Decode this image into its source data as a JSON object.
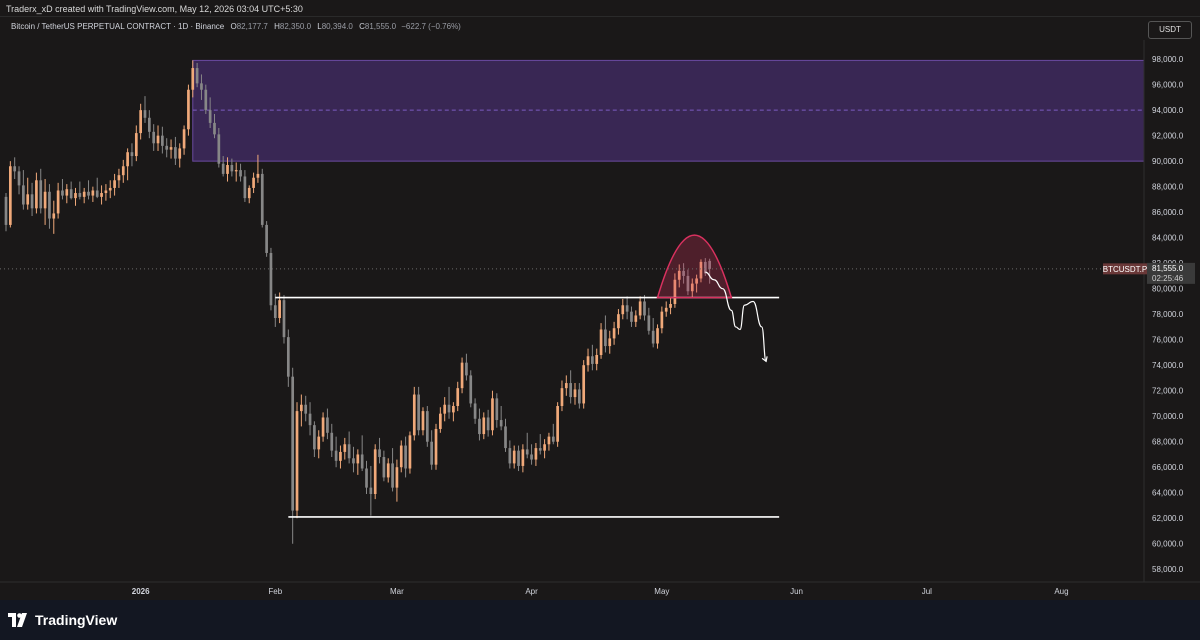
{
  "header": {
    "created_by": "Traderx_xD created with TradingView.com, May 12, 2026 03:04 UTC+5:30"
  },
  "symbol": {
    "title": "Bitcoin / TetherUS PERPETUAL CONTRACT · 1D · Binance",
    "open_label": "O",
    "open": "82,177.7",
    "high_label": "H",
    "high": "82,350.0",
    "low_label": "L",
    "low": "80,394.0",
    "close_label": "C",
    "close": "81,555.0",
    "change": "−622.7 (−0.76%)"
  },
  "currency_button": "USDT",
  "price_tag": {
    "ticker": "BTCUSDT.P",
    "price": "81,555.0",
    "countdown": "02:25:46"
  },
  "footer": {
    "brand": "TradingView"
  },
  "colors": {
    "background": "#1a1818",
    "bull_candle": "#f0a97a",
    "bear_candle": "#878787",
    "zone_fill": "#3f2a5f",
    "zone_border": "#6a4aa0",
    "arc_color": "#d9315f"
  },
  "chart_data": {
    "type": "candlestick",
    "y_axis_ticks": [
      "98,000.0",
      "96,000.0",
      "94,000.0",
      "92,000.0",
      "90,000.0",
      "88,000.0",
      "86,000.0",
      "84,000.0",
      "82,000.0",
      "80,000.0",
      "78,000.0",
      "76,000.0",
      "74,000.0",
      "72,000.0",
      "70,000.0",
      "68,000.0",
      "66,000.0",
      "64,000.0",
      "62,000.0",
      "60,000.0",
      "58,000.0"
    ],
    "ylim": [
      57000,
      99500
    ],
    "x_axis_labels": [
      "2026",
      "Feb",
      "Mar",
      "Apr",
      "May",
      "Jun",
      "Jul",
      "Aug"
    ],
    "x_range": [
      "2025-12-01",
      "2026-08-20"
    ],
    "zones": [
      {
        "type": "supply-zone",
        "from": "2026-01-13",
        "to": "2026-08-20",
        "low": 90000,
        "high": 97900,
        "mid": 94000
      }
    ],
    "levels": [
      {
        "price": 79300,
        "from": "2026-02-01",
        "to": "2026-05-28"
      },
      {
        "price": 62100,
        "from": "2026-02-04",
        "to": "2026-05-28"
      }
    ],
    "arc": {
      "from": "2026-04-30",
      "to": "2026-05-17",
      "base": 79300,
      "peak": 84200
    },
    "projection": [
      [
        "2026-05-11",
        81300
      ],
      [
        "2026-05-13",
        80700
      ],
      [
        "2026-05-15",
        80000
      ],
      [
        "2026-05-17",
        78300
      ],
      [
        "2026-05-18",
        77000
      ],
      [
        "2026-05-19",
        76800
      ],
      [
        "2026-05-20",
        78700
      ],
      [
        "2026-05-22",
        79000
      ],
      [
        "2026-05-24",
        77000
      ],
      [
        "2026-05-25",
        74300
      ]
    ],
    "last_price": 81555,
    "candles": [
      [
        "2025-12-01",
        87200,
        87500,
        84500,
        85000
      ],
      [
        "2025-12-02",
        85000,
        90000,
        84800,
        89600
      ],
      [
        "2025-12-03",
        89600,
        90300,
        88600,
        89200
      ],
      [
        "2025-12-04",
        89200,
        89600,
        87400,
        88100
      ],
      [
        "2025-12-05",
        88100,
        89300,
        86200,
        86600
      ],
      [
        "2025-12-06",
        86600,
        88700,
        86200,
        87400
      ],
      [
        "2025-12-07",
        87400,
        88300,
        85700,
        86300
      ],
      [
        "2025-12-08",
        86300,
        89100,
        85900,
        88500
      ],
      [
        "2025-12-09",
        88500,
        89400,
        85900,
        86300
      ],
      [
        "2025-12-10",
        86300,
        88600,
        85000,
        87600
      ],
      [
        "2025-12-11",
        87600,
        88200,
        84700,
        85500
      ],
      [
        "2025-12-12",
        85500,
        86900,
        84300,
        85900
      ],
      [
        "2025-12-13",
        85900,
        88300,
        85500,
        87700
      ],
      [
        "2025-12-14",
        87700,
        88600,
        87000,
        87300
      ],
      [
        "2025-12-15",
        87300,
        88200,
        86700,
        87800
      ],
      [
        "2025-12-16",
        87800,
        88400,
        87000,
        87100
      ],
      [
        "2025-12-17",
        87100,
        87900,
        86500,
        87500
      ],
      [
        "2025-12-18",
        87500,
        88400,
        87000,
        87200
      ],
      [
        "2025-12-19",
        87200,
        87900,
        86700,
        87600
      ],
      [
        "2025-12-20",
        87600,
        88500,
        87000,
        87300
      ],
      [
        "2025-12-21",
        87300,
        88000,
        86800,
        87700
      ],
      [
        "2025-12-22",
        87700,
        88700,
        87100,
        87200
      ],
      [
        "2025-12-23",
        87200,
        88100,
        86600,
        87500
      ],
      [
        "2025-12-24",
        87500,
        88200,
        86900,
        87700
      ],
      [
        "2025-12-25",
        87700,
        88500,
        87100,
        87900
      ],
      [
        "2025-12-26",
        87900,
        89000,
        87300,
        88500
      ],
      [
        "2025-12-27",
        88500,
        89400,
        87900,
        88900
      ],
      [
        "2025-12-28",
        88900,
        90100,
        88300,
        89600
      ],
      [
        "2025-12-29",
        89600,
        91000,
        88500,
        90700
      ],
      [
        "2025-12-30",
        90700,
        91400,
        89600,
        90400
      ],
      [
        "2025-12-31",
        90400,
        92800,
        90000,
        92200
      ],
      [
        "2026-01-01",
        92200,
        94500,
        91700,
        94000
      ],
      [
        "2026-01-02",
        94000,
        95100,
        93000,
        93400
      ],
      [
        "2026-01-03",
        93400,
        94000,
        91800,
        92300
      ],
      [
        "2026-01-04",
        92300,
        92900,
        90800,
        91400
      ],
      [
        "2026-01-05",
        91400,
        92800,
        90800,
        92000
      ],
      [
        "2026-01-06",
        92000,
        92700,
        90600,
        91200
      ],
      [
        "2026-01-07",
        91200,
        91800,
        90300,
        90900
      ],
      [
        "2026-01-08",
        90900,
        91700,
        90200,
        91100
      ],
      [
        "2026-01-09",
        91100,
        91900,
        89700,
        90200
      ],
      [
        "2026-01-10",
        90200,
        91400,
        89500,
        91000
      ],
      [
        "2026-01-11",
        91000,
        92800,
        90500,
        92500
      ],
      [
        "2026-01-12",
        92500,
        96000,
        92000,
        95600
      ],
      [
        "2026-01-13",
        95600,
        97900,
        95000,
        97300
      ],
      [
        "2026-01-14",
        97300,
        97700,
        95800,
        96100
      ],
      [
        "2026-01-15",
        96100,
        96800,
        94800,
        95600
      ],
      [
        "2026-01-16",
        95600,
        96000,
        93700,
        94000
      ],
      [
        "2026-01-17",
        94000,
        95000,
        92600,
        93000
      ],
      [
        "2026-01-18",
        93000,
        93700,
        91800,
        92100
      ],
      [
        "2026-01-19",
        92100,
        92600,
        89500,
        89800
      ],
      [
        "2026-01-20",
        89800,
        90400,
        88800,
        89000
      ],
      [
        "2026-01-21",
        89000,
        90300,
        88400,
        89700
      ],
      [
        "2026-01-22",
        89700,
        90200,
        88800,
        89200
      ],
      [
        "2026-01-23",
        89200,
        89900,
        88400,
        89300
      ],
      [
        "2026-01-24",
        89300,
        89800,
        88400,
        88800
      ],
      [
        "2026-01-25",
        88800,
        89300,
        86800,
        87100
      ],
      [
        "2026-01-26",
        87100,
        88100,
        86700,
        87900
      ],
      [
        "2026-01-27",
        87900,
        89100,
        87500,
        88700
      ],
      [
        "2026-01-28",
        88700,
        90500,
        88300,
        89000
      ],
      [
        "2026-01-29",
        89000,
        89400,
        84800,
        85000
      ],
      [
        "2026-01-30",
        85000,
        85300,
        82500,
        82800
      ],
      [
        "2026-01-31",
        82800,
        83200,
        78300,
        78700
      ],
      [
        "2026-02-01",
        78700,
        79600,
        77000,
        77700
      ],
      [
        "2026-02-02",
        77700,
        79700,
        77300,
        79100
      ],
      [
        "2026-02-03",
        79100,
        79500,
        75700,
        76200
      ],
      [
        "2026-02-04",
        76200,
        76800,
        72300,
        73100
      ],
      [
        "2026-02-05",
        73100,
        73800,
        60000,
        62600
      ],
      [
        "2026-02-06",
        62600,
        71100,
        62000,
        70400
      ],
      [
        "2026-02-07",
        70400,
        71700,
        69200,
        70900
      ],
      [
        "2026-02-08",
        70900,
        71600,
        69600,
        70200
      ],
      [
        "2026-02-09",
        70200,
        71100,
        68500,
        69300
      ],
      [
        "2026-02-10",
        69300,
        69600,
        66800,
        67400
      ],
      [
        "2026-02-11",
        67400,
        68900,
        66700,
        68400
      ],
      [
        "2026-02-12",
        68400,
        70300,
        68000,
        69900
      ],
      [
        "2026-02-13",
        69900,
        70600,
        68200,
        68700
      ],
      [
        "2026-02-14",
        68700,
        69400,
        66800,
        67300
      ],
      [
        "2026-02-15",
        67300,
        68400,
        66000,
        66500
      ],
      [
        "2026-02-16",
        66500,
        67700,
        65900,
        67200
      ],
      [
        "2026-02-17",
        67200,
        68300,
        66600,
        67800
      ],
      [
        "2026-02-18",
        67800,
        68800,
        66300,
        66700
      ],
      [
        "2026-02-19",
        66700,
        67600,
        65600,
        66300
      ],
      [
        "2026-02-20",
        66300,
        67400,
        65400,
        67000
      ],
      [
        "2026-02-21",
        67000,
        68500,
        65700,
        65900
      ],
      [
        "2026-02-22",
        65900,
        66500,
        63900,
        64400
      ],
      [
        "2026-02-23",
        64400,
        66100,
        62200,
        63900
      ],
      [
        "2026-02-24",
        63900,
        67800,
        63500,
        67400
      ],
      [
        "2026-02-25",
        67400,
        68300,
        66300,
        66800
      ],
      [
        "2026-02-26",
        66800,
        67300,
        64900,
        65200
      ],
      [
        "2026-02-27",
        65200,
        66700,
        64800,
        66300
      ],
      [
        "2026-02-28",
        66300,
        67500,
        64100,
        64400
      ],
      [
        "2026-03-01",
        64400,
        66600,
        63300,
        66000
      ],
      [
        "2026-03-02",
        66000,
        68100,
        65600,
        67700
      ],
      [
        "2026-03-03",
        67700,
        68400,
        65200,
        65900
      ],
      [
        "2026-03-04",
        65900,
        68800,
        65500,
        68500
      ],
      [
        "2026-03-05",
        68500,
        72300,
        68100,
        71700
      ],
      [
        "2026-03-06",
        71700,
        72300,
        68500,
        68900
      ],
      [
        "2026-03-07",
        68900,
        70700,
        68500,
        70400
      ],
      [
        "2026-03-08",
        70400,
        70800,
        67600,
        68000
      ],
      [
        "2026-03-09",
        68000,
        68900,
        65800,
        66200
      ],
      [
        "2026-03-10",
        66200,
        69400,
        65800,
        69000
      ],
      [
        "2026-03-11",
        69000,
        70700,
        68700,
        70200
      ],
      [
        "2026-03-12",
        70200,
        71500,
        69600,
        70900
      ],
      [
        "2026-03-13",
        70900,
        72300,
        69800,
        70300
      ],
      [
        "2026-03-14",
        70300,
        71100,
        69600,
        70800
      ],
      [
        "2026-03-15",
        70800,
        72700,
        70400,
        72200
      ],
      [
        "2026-03-16",
        72200,
        74600,
        71800,
        74200
      ],
      [
        "2026-03-17",
        74200,
        74900,
        72800,
        73200
      ],
      [
        "2026-03-18",
        73200,
        73600,
        70700,
        71000
      ],
      [
        "2026-03-19",
        71000,
        71400,
        69400,
        69800
      ],
      [
        "2026-03-20",
        69800,
        70600,
        68100,
        68600
      ],
      [
        "2026-03-21",
        68600,
        70300,
        68200,
        69900
      ],
      [
        "2026-03-22",
        69900,
        70500,
        68400,
        68900
      ],
      [
        "2026-03-23",
        68900,
        72000,
        68500,
        71400
      ],
      [
        "2026-03-24",
        71400,
        71800,
        69100,
        69700
      ],
      [
        "2026-03-25",
        69700,
        70800,
        68900,
        69200
      ],
      [
        "2026-03-26",
        69200,
        69800,
        67200,
        67500
      ],
      [
        "2026-03-27",
        67500,
        68100,
        65900,
        66300
      ],
      [
        "2026-03-28",
        66300,
        67700,
        65900,
        67300
      ],
      [
        "2026-03-29",
        67300,
        67700,
        65700,
        66100
      ],
      [
        "2026-03-30",
        66100,
        67800,
        65600,
        67400
      ],
      [
        "2026-03-31",
        67400,
        68700,
        66700,
        67000
      ],
      [
        "2026-04-01",
        67000,
        67800,
        66200,
        66600
      ],
      [
        "2026-04-02",
        66600,
        67900,
        66100,
        67500
      ],
      [
        "2026-04-03",
        67500,
        68600,
        67000,
        67300
      ],
      [
        "2026-04-04",
        67300,
        68200,
        66700,
        67800
      ],
      [
        "2026-04-05",
        67800,
        68700,
        67300,
        68400
      ],
      [
        "2026-04-06",
        68400,
        69400,
        67800,
        68000
      ],
      [
        "2026-04-07",
        68000,
        71100,
        67600,
        70800
      ],
      [
        "2026-04-08",
        70800,
        72800,
        70400,
        72200
      ],
      [
        "2026-04-09",
        72200,
        73200,
        71600,
        72600
      ],
      [
        "2026-04-10",
        72600,
        73600,
        71000,
        71500
      ],
      [
        "2026-04-11",
        71500,
        72600,
        70900,
        72100
      ],
      [
        "2026-04-12",
        72100,
        72600,
        70600,
        71000
      ],
      [
        "2026-04-13",
        71000,
        74400,
        70600,
        74000
      ],
      [
        "2026-04-14",
        74000,
        75300,
        73500,
        74700
      ],
      [
        "2026-04-15",
        74700,
        75600,
        73600,
        74100
      ],
      [
        "2026-04-16",
        74100,
        75300,
        73600,
        74800
      ],
      [
        "2026-04-17",
        74800,
        77300,
        74500,
        76800
      ],
      [
        "2026-04-18",
        76800,
        77900,
        75000,
        75500
      ],
      [
        "2026-04-19",
        75500,
        76700,
        74900,
        76100
      ],
      [
        "2026-04-20",
        76100,
        77400,
        75600,
        76900
      ],
      [
        "2026-04-21",
        76900,
        78400,
        76400,
        78000
      ],
      [
        "2026-04-22",
        78000,
        79200,
        77600,
        78700
      ],
      [
        "2026-04-23",
        78700,
        79400,
        77600,
        78200
      ],
      [
        "2026-04-24",
        78200,
        78600,
        77000,
        77400
      ],
      [
        "2026-04-25",
        77400,
        78300,
        77000,
        77900
      ],
      [
        "2026-04-26",
        77900,
        79400,
        77600,
        79000
      ],
      [
        "2026-04-27",
        79000,
        79500,
        77500,
        77900
      ],
      [
        "2026-04-28",
        77900,
        78500,
        76400,
        76700
      ],
      [
        "2026-04-29",
        76700,
        77700,
        75400,
        75700
      ],
      [
        "2026-04-30",
        75700,
        77200,
        75300,
        76900
      ],
      [
        "2026-05-01",
        76900,
        78600,
        76500,
        78200
      ],
      [
        "2026-05-02",
        78200,
        79000,
        77800,
        78500
      ],
      [
        "2026-05-03",
        78500,
        79300,
        78000,
        78800
      ],
      [
        "2026-05-04",
        78800,
        81200,
        78500,
        80700
      ],
      [
        "2026-05-05",
        80700,
        81900,
        80100,
        81400
      ],
      [
        "2026-05-06",
        81400,
        82000,
        80400,
        81000
      ],
      [
        "2026-05-07",
        81000,
        81500,
        79500,
        79800
      ],
      [
        "2026-05-08",
        79800,
        80800,
        79300,
        80400
      ],
      [
        "2026-05-09",
        80400,
        81100,
        79700,
        80800
      ],
      [
        "2026-05-10",
        80800,
        82300,
        80500,
        82100
      ],
      [
        "2026-05-11",
        82100,
        82400,
        81000,
        81200
      ],
      [
        "2026-05-12",
        82177.7,
        82350,
        80394,
        81555
      ]
    ]
  }
}
